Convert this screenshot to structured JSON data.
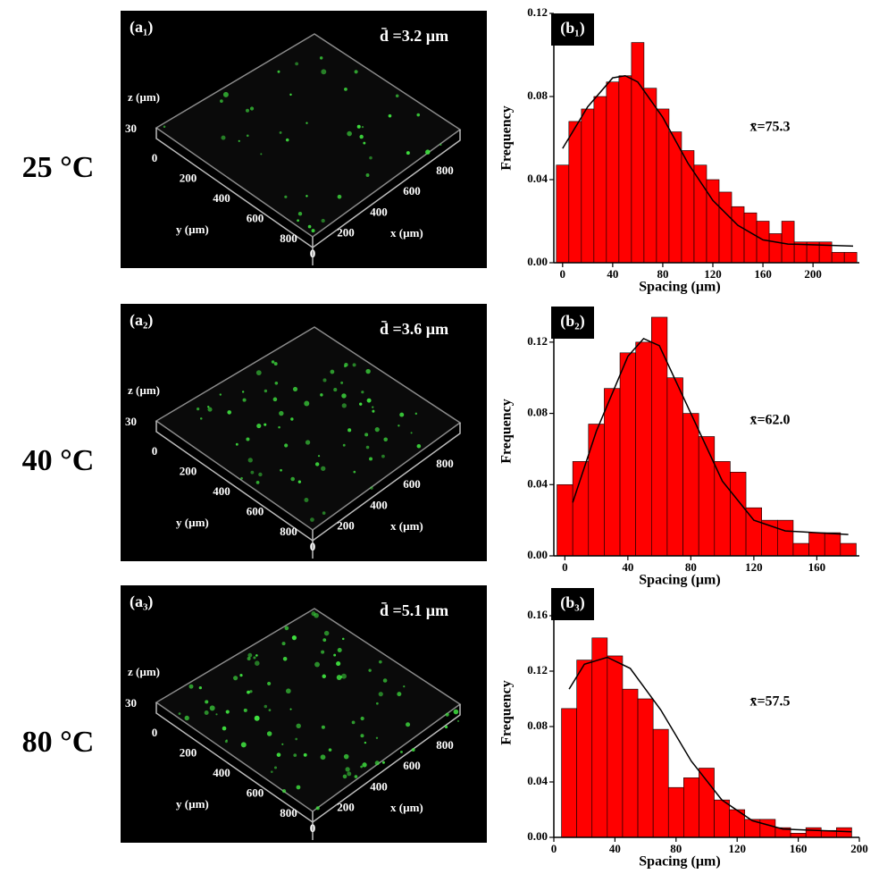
{
  "rows": [
    {
      "temperature": "25 °C",
      "image": {
        "label": "(a₁)",
        "mean": "d̄ =3.2 µm",
        "z_label": "z (µm)",
        "z_ticks": [
          "30"
        ],
        "y_ticks": [
          "0",
          "200",
          "400",
          "600",
          "800"
        ],
        "y_label": "y (µm)",
        "x_ticks": [
          "0",
          "200",
          "400",
          "600",
          "800"
        ],
        "x_label": "x  (µm)"
      }
    },
    {
      "temperature": "40 °C",
      "image": {
        "label": "(a₂)",
        "mean": "d̄ =3.6 µm",
        "z_label": "z (µm)",
        "z_ticks": [
          "30"
        ],
        "y_ticks": [
          "0",
          "200",
          "400",
          "600",
          "800"
        ],
        "y_label": "y (µm)",
        "x_ticks": [
          "0",
          "200",
          "400",
          "600",
          "800"
        ],
        "x_label": "x  (µm)"
      }
    },
    {
      "temperature": "80 °C",
      "image": {
        "label": "(a₃)",
        "mean": "d̄ =5.1 µm",
        "z_label": "z (µm)",
        "z_ticks": [
          "30"
        ],
        "y_ticks": [
          "0",
          "200",
          "400",
          "600",
          "800"
        ],
        "y_label": "y (µm)",
        "x_ticks": [
          "0",
          "200",
          "400",
          "600",
          "800"
        ],
        "x_label": "x  (µm)"
      }
    }
  ],
  "chart_data": [
    {
      "type": "histogram",
      "panel_label": "(b₁)",
      "annotation": "x̄=75.3",
      "xlabel": "Spacing (µm)",
      "ylabel": "Frequency",
      "color": "#ff0000",
      "bins": [
        -5,
        5,
        15,
        25,
        35,
        45,
        55,
        65,
        75,
        85,
        95,
        105,
        115,
        125,
        135,
        145,
        155,
        165,
        175,
        185,
        195,
        205,
        215,
        225,
        235
      ],
      "values": [
        0.047,
        0.068,
        0.074,
        0.08,
        0.087,
        0.09,
        0.106,
        0.084,
        0.074,
        0.063,
        0.054,
        0.047,
        0.04,
        0.034,
        0.027,
        0.024,
        0.02,
        0.014,
        0.02,
        0.01,
        0.01,
        0.01,
        0.005,
        0.005
      ],
      "curve": {
        "x": [
          0,
          20,
          40,
          50,
          60,
          80,
          100,
          120,
          140,
          160,
          180,
          232
        ],
        "values": [
          0.055,
          0.075,
          0.089,
          0.09,
          0.087,
          0.07,
          0.048,
          0.03,
          0.018,
          0.011,
          0.009,
          0.008
        ],
        "color": "#000000"
      },
      "xlim": [
        -7,
        237
      ],
      "ylim": [
        0,
        0.12
      ],
      "xticks": [
        0,
        40,
        80,
        120,
        160,
        200
      ],
      "yticks": [
        {
          "value": 0,
          "label": "0.00"
        },
        {
          "value": 0.04,
          "label": "0.04"
        },
        {
          "value": 0.08,
          "label": "0.08"
        },
        {
          "value": 0.12,
          "label": "0.12"
        }
      ]
    },
    {
      "type": "histogram",
      "panel_label": "(b₂)",
      "annotation": "x̄=62.0",
      "xlabel": "Spacing (µm)",
      "ylabel": "Frequency",
      "color": "#ff0000",
      "bins": [
        -5,
        5,
        15,
        25,
        35,
        45,
        55,
        65,
        75,
        85,
        95,
        105,
        115,
        125,
        135,
        145,
        155,
        165,
        175,
        185
      ],
      "values": [
        0.04,
        0.053,
        0.074,
        0.094,
        0.114,
        0.12,
        0.134,
        0.1,
        0.08,
        0.067,
        0.053,
        0.047,
        0.027,
        0.02,
        0.02,
        0.007,
        0.013,
        0.013,
        0.007
      ],
      "curve": {
        "x": [
          5,
          20,
          40,
          50,
          60,
          80,
          100,
          120,
          140,
          180
        ],
        "values": [
          0.03,
          0.07,
          0.112,
          0.122,
          0.118,
          0.08,
          0.042,
          0.02,
          0.014,
          0.012
        ],
        "color": "#000000"
      },
      "xlim": [
        -7,
        187
      ],
      "ylim": [
        0,
        0.14
      ],
      "xticks": [
        0,
        40,
        80,
        120,
        160
      ],
      "yticks": [
        {
          "value": 0,
          "label": "0.00"
        },
        {
          "value": 0.04,
          "label": "0.04"
        },
        {
          "value": 0.08,
          "label": "0.08"
        },
        {
          "value": 0.12,
          "label": "0.12"
        }
      ]
    },
    {
      "type": "histogram",
      "panel_label": "(b₃)",
      "annotation": "x̄=57.5",
      "xlabel": "Spacing (µm)",
      "ylabel": "Frequency",
      "color": "#ff0000",
      "bins": [
        5,
        15,
        25,
        35,
        45,
        55,
        65,
        75,
        85,
        95,
        105,
        115,
        125,
        135,
        145,
        155,
        165,
        175,
        185,
        195
      ],
      "values": [
        0.093,
        0.128,
        0.144,
        0.131,
        0.107,
        0.1,
        0.078,
        0.036,
        0.043,
        0.05,
        0.027,
        0.02,
        0.013,
        0.013,
        0.007,
        0.003,
        0.007,
        0.005,
        0.007
      ],
      "curve": {
        "x": [
          10,
          20,
          35,
          50,
          70,
          90,
          110,
          130,
          150,
          195
        ],
        "values": [
          0.107,
          0.125,
          0.13,
          0.122,
          0.092,
          0.055,
          0.027,
          0.012,
          0.006,
          0.004
        ],
        "color": "#000000"
      },
      "xlim": [
        0,
        200
      ],
      "ylim": [
        0,
        0.18
      ],
      "xticks": [
        0,
        40,
        80,
        120,
        160,
        200
      ],
      "yticks": [
        {
          "value": 0,
          "label": "0.00"
        },
        {
          "value": 0.04,
          "label": "0.04"
        },
        {
          "value": 0.08,
          "label": "0.08"
        },
        {
          "value": 0.12,
          "label": "0.12"
        },
        {
          "value": 0.16,
          "label": "0.16"
        }
      ]
    }
  ]
}
